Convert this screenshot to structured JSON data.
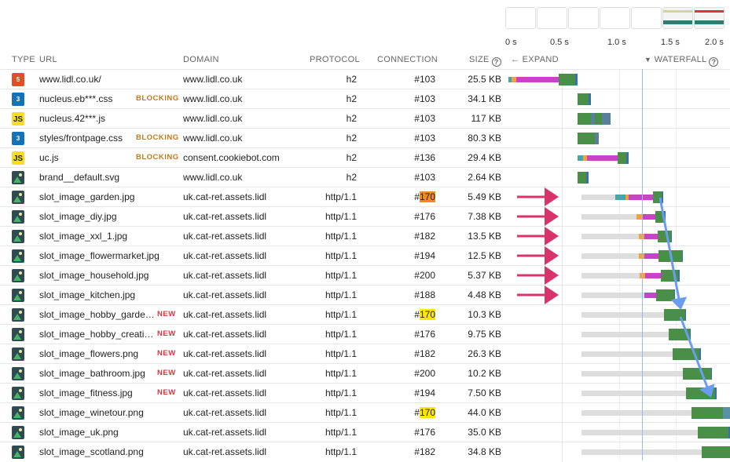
{
  "filmstrip": {
    "frames": 7,
    "filled_frames": [
      5,
      6
    ]
  },
  "timeline": {
    "ticks": [
      "0 s",
      "0.5 s",
      "1.0 s",
      "1.5 s",
      "2.0 s"
    ],
    "max_seconds": 2.0,
    "marker_seconds": 1.2
  },
  "columns": {
    "type": "TYPE",
    "url": "URL",
    "domain": "DOMAIN",
    "protocol": "PROTOCOL",
    "connection": "CONNECTION",
    "size": "SIZE",
    "expand": "← EXPAND",
    "waterfall": "WATERFALL"
  },
  "icons": {
    "html": "HTML5",
    "css": "CSS3",
    "js": "JS",
    "img": "image"
  },
  "rows": [
    {
      "type": "html",
      "url": "www.lidl.co.uk/",
      "badge": "",
      "domain": "www.lidl.co.uk",
      "protocol": "h2",
      "conn_prefix": "#",
      "conn_num": "103",
      "highlight": "",
      "size": "25.5 KB",
      "segments": [
        [
          0.0,
          0.03,
          "#4aa3a8"
        ],
        [
          0.03,
          0.07,
          "#f0a33c"
        ],
        [
          0.07,
          0.45,
          "#c843c6"
        ],
        [
          0.45,
          0.6,
          "#4a8f47"
        ],
        [
          0.6,
          0.62,
          "#3c6fb0"
        ]
      ]
    },
    {
      "type": "css",
      "url": "nucleus.eb***.css",
      "badge": "BLOCKING",
      "domain": "www.lidl.co.uk",
      "protocol": "h2",
      "conn_prefix": "#",
      "conn_num": "103",
      "highlight": "",
      "size": "34.1 KB",
      "segments": [
        [
          0.62,
          0.72,
          "#4a8f47"
        ],
        [
          0.72,
          0.74,
          "#3c6fb0"
        ]
      ]
    },
    {
      "type": "js",
      "url": "nucleus.42***.js",
      "badge": "",
      "domain": "www.lidl.co.uk",
      "protocol": "h2",
      "conn_prefix": "#",
      "conn_num": "103",
      "highlight": "",
      "size": "117 KB",
      "segments": [
        [
          0.62,
          0.74,
          "#4a8f47"
        ],
        [
          0.74,
          0.78,
          "#5a7f9a"
        ],
        [
          0.78,
          0.84,
          "#4a8f47"
        ],
        [
          0.84,
          0.92,
          "#5a7f9a"
        ]
      ]
    },
    {
      "type": "css",
      "url": "styles/frontpage.css",
      "badge": "BLOCKING",
      "domain": "www.lidl.co.uk",
      "protocol": "h2",
      "conn_prefix": "#",
      "conn_num": "103",
      "highlight": "",
      "size": "80.3 KB",
      "segments": [
        [
          0.62,
          0.78,
          "#4a8f47"
        ],
        [
          0.78,
          0.81,
          "#5a7f9a"
        ]
      ]
    },
    {
      "type": "js",
      "url": "uc.js",
      "badge": "BLOCKING",
      "domain": "consent.cookiebot.com",
      "protocol": "h2",
      "conn_prefix": "#",
      "conn_num": "136",
      "highlight": "",
      "size": "29.4 KB",
      "segments": [
        [
          0.62,
          0.67,
          "#4aa3a8"
        ],
        [
          0.67,
          0.71,
          "#f0a33c"
        ],
        [
          0.71,
          0.98,
          "#c843c6"
        ],
        [
          0.98,
          1.06,
          "#4a8f47"
        ],
        [
          1.06,
          1.08,
          "#3c6fb0"
        ]
      ]
    },
    {
      "type": "img",
      "url": "brand__default.svg",
      "badge": "",
      "domain": "www.lidl.co.uk",
      "protocol": "h2",
      "conn_prefix": "#",
      "conn_num": "103",
      "highlight": "",
      "size": "2.64 KB",
      "segments": [
        [
          0.62,
          0.7,
          "#4a8f47"
        ],
        [
          0.7,
          0.72,
          "#3c6fb0"
        ]
      ]
    },
    {
      "type": "img",
      "url": "slot_image_garden.jpg",
      "badge": "",
      "domain": "uk.cat-ret.assets.lidl",
      "protocol": "http/1.1",
      "conn_prefix": "#",
      "conn_num": "170",
      "highlight": "orange",
      "size": "5.49 KB",
      "segments": [
        [
          0.66,
          0.96,
          "#dddddd"
        ],
        [
          0.96,
          1.05,
          "#4aa3a8"
        ],
        [
          1.05,
          1.08,
          "#f0a33c"
        ],
        [
          1.08,
          1.3,
          "#c843c6"
        ],
        [
          1.3,
          1.38,
          "#4a8f47"
        ],
        [
          1.38,
          1.39,
          "#3c6fb0"
        ]
      ]
    },
    {
      "type": "img",
      "url": "slot_image_diy.jpg",
      "badge": "",
      "domain": "uk.cat-ret.assets.lidl",
      "protocol": "http/1.1",
      "conn_prefix": "#",
      "conn_num": "176",
      "highlight": "",
      "size": "7.38 KB",
      "segments": [
        [
          0.66,
          1.15,
          "#dddddd"
        ],
        [
          1.15,
          1.2,
          "#f0a33c"
        ],
        [
          1.2,
          1.32,
          "#c843c6"
        ],
        [
          1.32,
          1.4,
          "#4a8f47"
        ],
        [
          1.4,
          1.41,
          "#3c6fb0"
        ]
      ]
    },
    {
      "type": "img",
      "url": "slot_image_xxl_1.jpg",
      "badge": "",
      "domain": "uk.cat-ret.assets.lidl",
      "protocol": "http/1.1",
      "conn_prefix": "#",
      "conn_num": "182",
      "highlight": "",
      "size": "13.5 KB",
      "segments": [
        [
          0.66,
          1.17,
          "#dddddd"
        ],
        [
          1.17,
          1.22,
          "#f0a33c"
        ],
        [
          1.22,
          1.34,
          "#c843c6"
        ],
        [
          1.34,
          1.46,
          "#4a8f47"
        ],
        [
          1.46,
          1.47,
          "#3c6fb0"
        ]
      ]
    },
    {
      "type": "img",
      "url": "slot_image_flowermarket.jpg",
      "badge": "",
      "domain": "uk.cat-ret.assets.lidl",
      "protocol": "http/1.1",
      "conn_prefix": "#",
      "conn_num": "194",
      "highlight": "",
      "size": "12.5 KB",
      "segments": [
        [
          0.66,
          1.17,
          "#dddddd"
        ],
        [
          1.17,
          1.22,
          "#f0a33c"
        ],
        [
          1.22,
          1.35,
          "#c843c6"
        ],
        [
          1.35,
          1.56,
          "#4a8f47"
        ],
        [
          1.56,
          1.57,
          "#3c6fb0"
        ]
      ]
    },
    {
      "type": "img",
      "url": "slot_image_household.jpg",
      "badge": "",
      "domain": "uk.cat-ret.assets.lidl",
      "protocol": "http/1.1",
      "conn_prefix": "#",
      "conn_num": "200",
      "highlight": "",
      "size": "5.37 KB",
      "segments": [
        [
          0.66,
          1.18,
          "#dddddd"
        ],
        [
          1.18,
          1.23,
          "#f0a33c"
        ],
        [
          1.23,
          1.37,
          "#c843c6"
        ],
        [
          1.37,
          1.53,
          "#4a8f47"
        ],
        [
          1.53,
          1.54,
          "#3c6fb0"
        ]
      ]
    },
    {
      "type": "img",
      "url": "slot_image_kitchen.jpg",
      "badge": "",
      "domain": "uk.cat-ret.assets.lidl",
      "protocol": "http/1.1",
      "conn_prefix": "#",
      "conn_num": "188",
      "highlight": "",
      "size": "4.48 KB",
      "segments": [
        [
          0.66,
          1.22,
          "#dddddd"
        ],
        [
          1.22,
          1.33,
          "#c843c6"
        ],
        [
          1.33,
          1.49,
          "#4a8f47"
        ],
        [
          1.49,
          1.5,
          "#3c6fb0"
        ]
      ]
    },
    {
      "type": "img",
      "url": "slot_image_hobby_garde…",
      "badge": "NEW",
      "domain": "uk.cat-ret.assets.lidl",
      "protocol": "http/1.1",
      "conn_prefix": "#",
      "conn_num": "170",
      "highlight": "yellow",
      "size": "10.3 KB",
      "segments": [
        [
          0.66,
          1.4,
          "#dddddd"
        ],
        [
          1.4,
          1.59,
          "#4a8f47"
        ],
        [
          1.59,
          1.6,
          "#3c6fb0"
        ]
      ]
    },
    {
      "type": "img",
      "url": "slot_image_hobby_creati…",
      "badge": "NEW",
      "domain": "uk.cat-ret.assets.lidl",
      "protocol": "http/1.1",
      "conn_prefix": "#",
      "conn_num": "176",
      "highlight": "",
      "size": "9.75 KB",
      "segments": [
        [
          0.66,
          1.44,
          "#dddddd"
        ],
        [
          1.44,
          1.63,
          "#4a8f47"
        ],
        [
          1.63,
          1.64,
          "#3c6fb0"
        ]
      ]
    },
    {
      "type": "img",
      "url": "slot_image_flowers.png",
      "badge": "NEW",
      "domain": "uk.cat-ret.assets.lidl",
      "protocol": "http/1.1",
      "conn_prefix": "#",
      "conn_num": "182",
      "highlight": "",
      "size": "26.3 KB",
      "segments": [
        [
          0.66,
          1.48,
          "#dddddd"
        ],
        [
          1.48,
          1.72,
          "#4a8f47"
        ],
        [
          1.72,
          1.73,
          "#3c6fb0"
        ]
      ]
    },
    {
      "type": "img",
      "url": "slot_image_bathroom.jpg",
      "badge": "NEW",
      "domain": "uk.cat-ret.assets.lidl",
      "protocol": "http/1.1",
      "conn_prefix": "#",
      "conn_num": "200",
      "highlight": "",
      "size": "10.2 KB",
      "segments": [
        [
          0.66,
          1.57,
          "#dddddd"
        ],
        [
          1.57,
          1.82,
          "#4a8f47"
        ],
        [
          1.82,
          1.83,
          "#3c6fb0"
        ]
      ]
    },
    {
      "type": "img",
      "url": "slot_image_fitness.jpg",
      "badge": "NEW",
      "domain": "uk.cat-ret.assets.lidl",
      "protocol": "http/1.1",
      "conn_prefix": "#",
      "conn_num": "194",
      "highlight": "",
      "size": "7.50 KB",
      "segments": [
        [
          0.66,
          1.6,
          "#dddddd"
        ],
        [
          1.6,
          1.86,
          "#4a8f47"
        ],
        [
          1.86,
          1.87,
          "#3c6fb0"
        ]
      ]
    },
    {
      "type": "img",
      "url": "slot_image_winetour.png",
      "badge": "",
      "domain": "uk.cat-ret.assets.lidl",
      "protocol": "http/1.1",
      "conn_prefix": "#",
      "conn_num": "170",
      "highlight": "yellow",
      "size": "44.0 KB",
      "segments": [
        [
          0.66,
          1.65,
          "#dddddd"
        ],
        [
          1.65,
          1.93,
          "#4a8f47"
        ],
        [
          1.93,
          2.0,
          "#5a8fa8"
        ]
      ]
    },
    {
      "type": "img",
      "url": "slot_image_uk.png",
      "badge": "",
      "domain": "uk.cat-ret.assets.lidl",
      "protocol": "http/1.1",
      "conn_prefix": "#",
      "conn_num": "176",
      "highlight": "",
      "size": "35.0 KB",
      "segments": [
        [
          0.66,
          1.7,
          "#dddddd"
        ],
        [
          1.7,
          1.98,
          "#4a8f47"
        ],
        [
          1.98,
          1.99,
          "#3c6fb0"
        ]
      ]
    },
    {
      "type": "img",
      "url": "slot_image_scotland.png",
      "badge": "",
      "domain": "uk.cat-ret.assets.lidl",
      "protocol": "http/1.1",
      "conn_prefix": "#",
      "conn_num": "182",
      "highlight": "",
      "size": "34.8 KB",
      "segments": [
        [
          0.66,
          1.74,
          "#dddddd"
        ],
        [
          1.74,
          2.0,
          "#4a8f47"
        ]
      ]
    }
  ],
  "colors": {
    "arrow_pink": "#d8336b",
    "arrow_blue": "#6a9cf0",
    "marker_line": "#9fb7ee"
  }
}
